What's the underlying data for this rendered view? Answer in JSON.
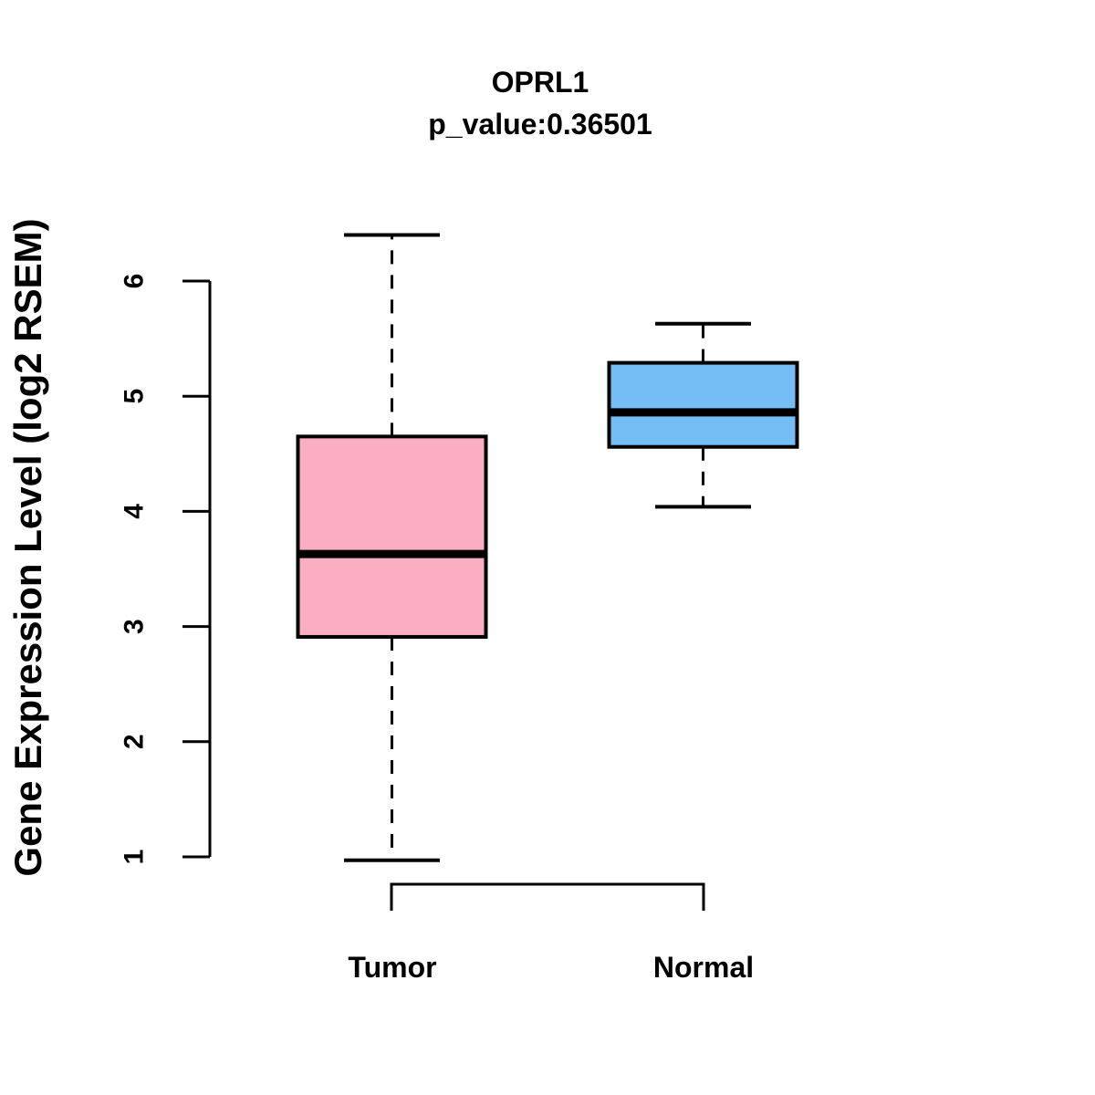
{
  "figure": {
    "title": "OPRL1",
    "subtitle": "p_value:0.36501"
  },
  "chart_data": {
    "type": "boxplot",
    "title": "OPRL1",
    "subtitle": "p_value:0.36501",
    "gene": "OPRL1",
    "p_value": 0.36501,
    "ylabel": "Gene Expression Level (log2 RSEM)",
    "xlabel": "",
    "categories": [
      "Tumor",
      "Normal"
    ],
    "yticks": [
      1,
      2,
      3,
      4,
      5,
      6
    ],
    "ylim": [
      0.97,
      6.4
    ],
    "grid": false,
    "legend_position": "none",
    "series": [
      {
        "name": "Tumor",
        "fill_color": "#FBAEC1",
        "min": 0.97,
        "q1": 2.91,
        "median": 3.63,
        "q3": 4.65,
        "max": 6.4
      },
      {
        "name": "Normal",
        "fill_color": "#74BDF5",
        "min": 4.04,
        "q1": 4.56,
        "median": 4.86,
        "q3": 5.29,
        "max": 5.63
      }
    ],
    "style": {
      "box_border_color": "#000000",
      "median_color": "#000000",
      "whisker_style": "dashed"
    }
  }
}
